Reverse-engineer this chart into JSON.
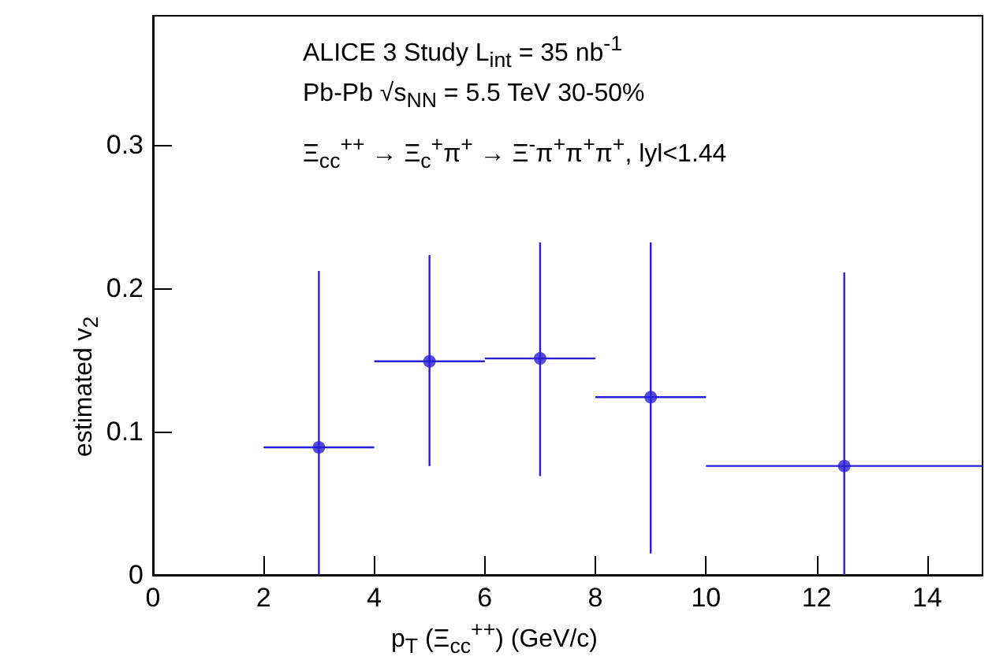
{
  "chart_data": {
    "type": "scatter",
    "xlabel": "p$_{T}$ (Ξ$_{cc}$$^{++}$) (GeV/c)",
    "ylabel": "estimated v$_{2}$",
    "annotations": [
      "ALICE 3 Study L$_{int}$ = 35 nb$^{-1}$",
      "Pb-Pb √s$_{NN}$ = 5.5 TeV 30-50%",
      "Ξ$_{cc}$$^{++}$ → Ξ$_{c}$$^{+}$π$^{+}$ → Ξ$^{-}$π$^{+}$π$^{+}$π$^{+}$, lyl<1.44"
    ],
    "x": [
      3,
      5,
      7,
      9,
      12.5
    ],
    "series": [
      {
        "color": "#2a1fd6",
        "values": [
          0.089,
          0.149,
          0.151,
          0.124,
          0.076
        ],
        "errors": [
          [
            0,
            0.212
          ],
          [
            0.076,
            0.223
          ],
          [
            0.069,
            0.232
          ],
          [
            0.015,
            0.232
          ],
          [
            0,
            0.211
          ]
        ],
        "xerrors": [
          1,
          1,
          1,
          1,
          2.5
        ]
      }
    ],
    "xlim": [
      0,
      15
    ],
    "xticks": [
      0,
      2,
      4,
      6,
      8,
      10,
      12,
      14
    ],
    "ylim": [
      0,
      0.39
    ],
    "yticks": [
      0,
      0.1,
      0.2,
      0.3
    ],
    "marker": "circle",
    "grid": false
  }
}
